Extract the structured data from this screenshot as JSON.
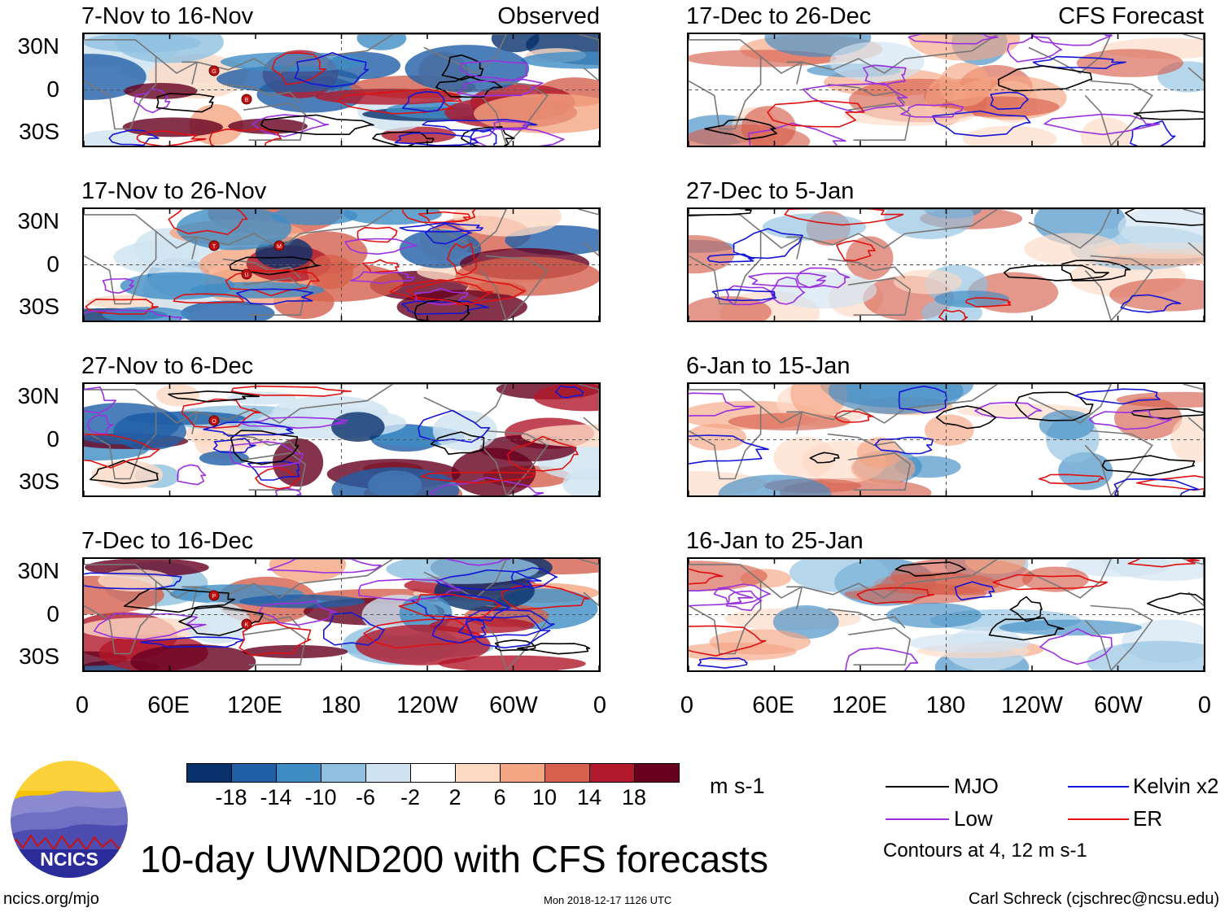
{
  "panels": {
    "observed_label": "Observed",
    "forecast_label": "CFS Forecast",
    "observed": [
      {
        "title": "7-Nov to 16-Nov",
        "storms": [
          "G",
          "B"
        ]
      },
      {
        "title": "17-Nov to 26-Nov",
        "storms": [
          "T",
          "U",
          "M"
        ]
      },
      {
        "title": "27-Nov to 6-Dec",
        "storms": [
          "O"
        ]
      },
      {
        "title": "7-Dec to 16-Dec",
        "storms": [
          "P",
          "K"
        ]
      }
    ],
    "forecast": [
      {
        "title": "17-Dec to 26-Dec"
      },
      {
        "title": "27-Dec to 5-Jan"
      },
      {
        "title": "6-Jan to 15-Jan"
      },
      {
        "title": "16-Jan to 25-Jan"
      }
    ],
    "lat_labels": [
      "30N",
      "0",
      "30S"
    ],
    "lon_labels": [
      "0",
      "60E",
      "120E",
      "180",
      "120W",
      "60W",
      "0"
    ]
  },
  "colorbar": {
    "colors": [
      "#08306b",
      "#1f5fa8",
      "#3f8cc5",
      "#8fc0e0",
      "#cfe3f1",
      "#ffffff",
      "#fdd9c4",
      "#f4a582",
      "#d6604d",
      "#b2182b",
      "#67001f"
    ],
    "ticks": [
      "-18",
      "-14",
      "-10",
      "-6",
      "-2",
      "2",
      "6",
      "10",
      "14",
      "18"
    ],
    "units": "m s-1"
  },
  "legend": {
    "items": [
      {
        "label": "MJO",
        "color": "#000000"
      },
      {
        "label": "Kelvin x2",
        "color": "#1515d8"
      },
      {
        "label": "Low",
        "color": "#9b30e0"
      },
      {
        "label": "ER",
        "color": "#e01010"
      }
    ],
    "note": "Contours at 4, 12 m s-1"
  },
  "logo": {
    "text": "NCICS"
  },
  "main_title": "10-day UWND200 with CFS forecasts",
  "footer": {
    "url": "ncics.org/mjo",
    "timestamp": "Mon 2018-12-17 1126 UTC",
    "credit": "Carl Schreck (cjschrec@ncsu.edu)"
  }
}
